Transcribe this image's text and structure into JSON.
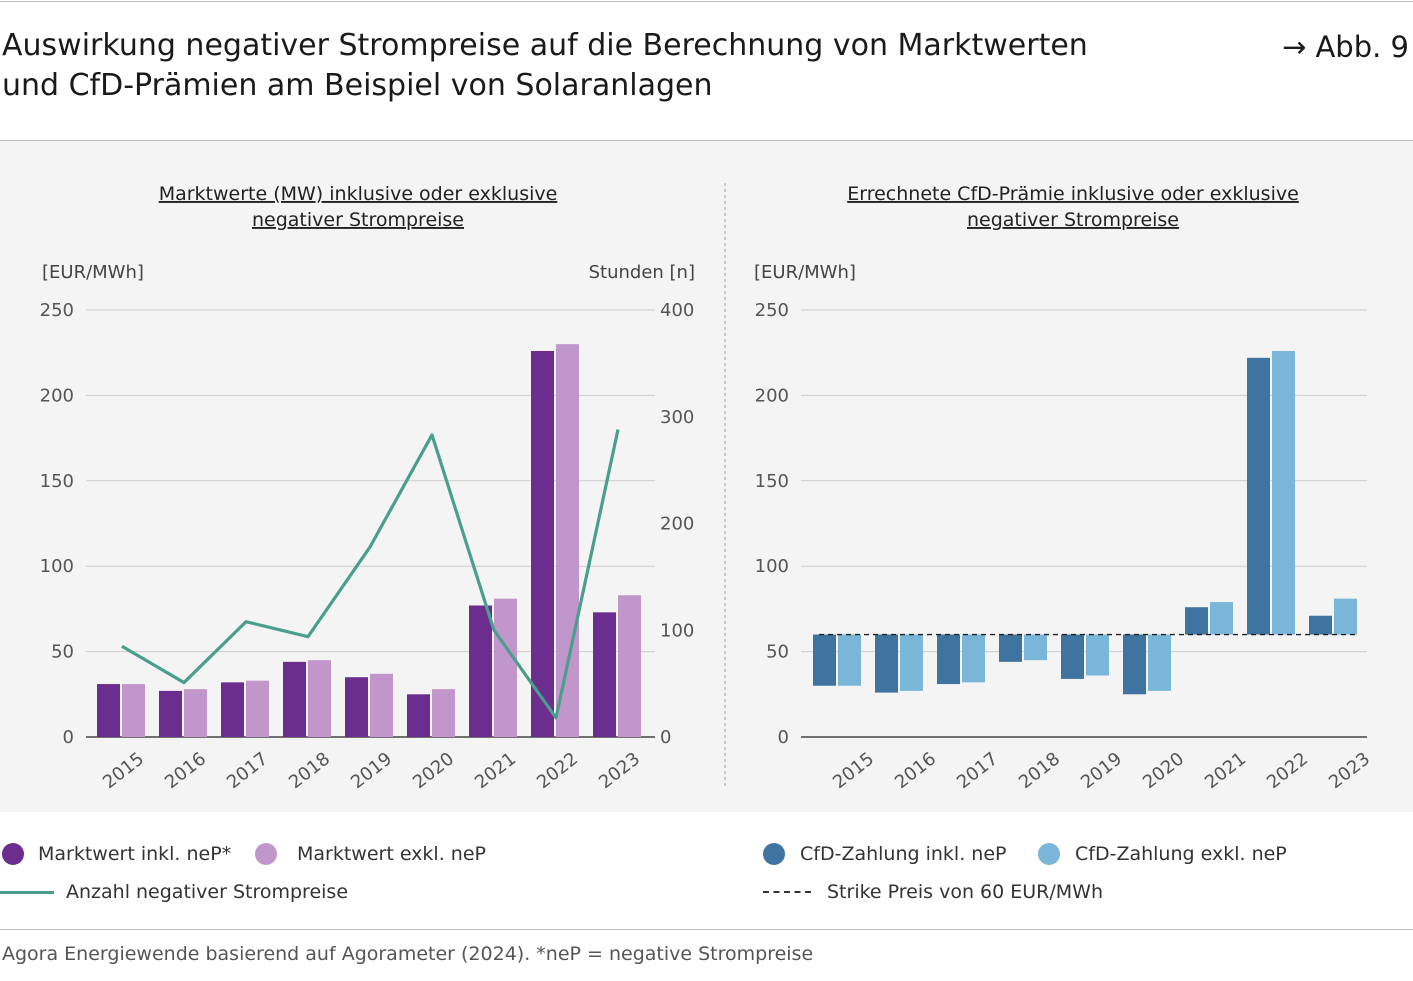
{
  "header": {
    "title_line1": "Auswirkung negativer Strompreise auf die Berechnung von Marktwerten",
    "title_line2": "und CfD-Prämien am Beispiel von Solaranlagen",
    "figure_ref": "→ Abb. 9"
  },
  "colors": {
    "mw_incl": "#6b2d8e",
    "mw_excl": "#c197cb",
    "line": "#4a9e8c",
    "cfd_incl": "#3f73a0",
    "cfd_excl": "#79b6d8",
    "panel_bg": "#f4f4f4"
  },
  "chart_data": [
    {
      "type": "bar",
      "title_line1": "Marktwerte (MW) inklusive oder exklusive",
      "title_line2": "negativer Strompreise",
      "ylabel": "[EUR/MWh]",
      "ylabel_right": "Stunden [n]",
      "ylim": [
        0,
        250
      ],
      "yticks": [
        "0",
        "50",
        "100",
        "150",
        "200",
        "250"
      ],
      "ylim_right": [
        0,
        400
      ],
      "yticks_right": [
        "0",
        "100",
        "200",
        "300",
        "400"
      ],
      "categories": [
        "2015",
        "2016",
        "2017",
        "2018",
        "2019",
        "2020",
        "2021",
        "2022",
        "2023"
      ],
      "series": [
        {
          "name": "Marktwert inkl. neP*",
          "values": [
            31,
            27,
            32,
            44,
            35,
            25,
            77,
            226,
            73
          ]
        },
        {
          "name": "Marktwert exkl. neP",
          "values": [
            31,
            28,
            33,
            45,
            37,
            28,
            81,
            230,
            83
          ]
        },
        {
          "name": "Anzahl negativer Strompreise",
          "axis": "right",
          "type": "line",
          "values": [
            85,
            51,
            108,
            94,
            178,
            283,
            100,
            18,
            288
          ]
        }
      ]
    },
    {
      "type": "bar",
      "title_line1": "Errechnete CfD-Prämie inklusive oder exklusive",
      "title_line2": "negativer Strompreise",
      "ylabel": "[EUR/MWh]",
      "ylim": [
        0,
        250
      ],
      "yticks": [
        "0",
        "50",
        "100",
        "150",
        "200",
        "250"
      ],
      "categories": [
        "2015",
        "2016",
        "2017",
        "2018",
        "2019",
        "2020",
        "2021",
        "2022",
        "2023"
      ],
      "strike": 60,
      "series": [
        {
          "name": "CfD-Zahlung inkl. neP",
          "values": [
            30,
            26,
            31,
            44,
            34,
            25,
            76,
            222,
            71
          ]
        },
        {
          "name": "CfD-Zahlung exkl. neP",
          "values": [
            30,
            27,
            32,
            45,
            36,
            27,
            79,
            226,
            81
          ]
        }
      ]
    }
  ],
  "legend": {
    "mw_incl": "Marktwert inkl. neP*",
    "mw_excl": "Marktwert exkl. neP",
    "line": "Anzahl negativer Strompreise",
    "cfd_incl": "CfD-Zahlung inkl. neP",
    "cfd_excl": "CfD-Zahlung exkl. neP",
    "strike": "Strike Preis von 60 EUR/MWh"
  },
  "source": "Agora Energiewende basierend auf Agorameter (2024). *neP = negative Strompreise"
}
